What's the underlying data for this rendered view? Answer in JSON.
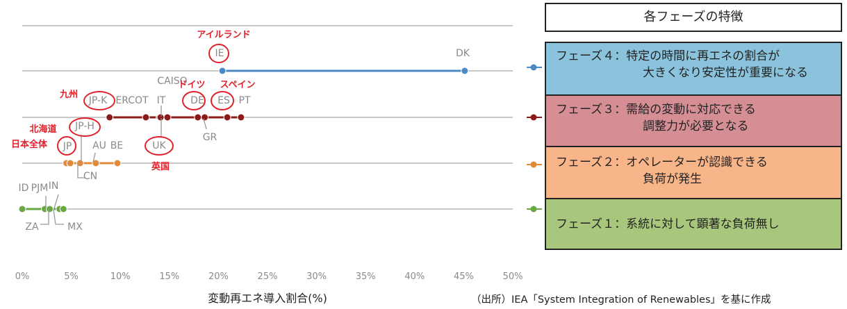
{
  "chart_data": {
    "type": "scatter",
    "xlabel": "変動再エネ導入割合(%)",
    "xlim": [
      0,
      50
    ],
    "x_ticks": [
      "0%",
      "5%",
      "10%",
      "15%",
      "20%",
      "25%",
      "30%",
      "35%",
      "40%",
      "45%",
      "50%"
    ],
    "grid": true,
    "series": [
      {
        "phase": "フェーズ1",
        "color": "#6aa843",
        "points": [
          {
            "label": "ID",
            "x": 0.0
          },
          {
            "label": "PJM",
            "x": 2.3
          },
          {
            "label": "ZA",
            "x": 2.8
          },
          {
            "label": "IN",
            "x": 3.8
          },
          {
            "label": "MX",
            "x": 4.2
          }
        ]
      },
      {
        "phase": "フェーズ2",
        "color": "#e08a3a",
        "points": [
          {
            "label": "JP",
            "x": 4.5
          },
          {
            "label": "CN",
            "x": 5.9
          },
          {
            "label": "JP-H",
            "x": 4.9
          },
          {
            "label": "AU",
            "x": 7.5
          },
          {
            "label": "BE",
            "x": 9.7
          }
        ]
      },
      {
        "phase": "フェーズ3",
        "color": "#8b1a1a",
        "points": [
          {
            "label": "JP-K",
            "x": 8.9
          },
          {
            "label": "ERCOT",
            "x": 12.6
          },
          {
            "label": "IT",
            "x": 14.0
          },
          {
            "label": "UK",
            "x": 14.1
          },
          {
            "label": "CAISO",
            "x": 14.8
          },
          {
            "label": "DE",
            "x": 17.9
          },
          {
            "label": "GR",
            "x": 18.6
          },
          {
            "label": "ES",
            "x": 20.9
          },
          {
            "label": "PT",
            "x": 22.3
          }
        ]
      },
      {
        "phase": "フェーズ4",
        "color": "#4d8ac4",
        "points": [
          {
            "label": "IE",
            "x": 20.4
          },
          {
            "label": "DK",
            "x": 45.1
          }
        ]
      }
    ],
    "annotations": {
      "IE": "アイルランド",
      "JP-K": "九州",
      "DE": "ドイツ",
      "ES": "スペイン",
      "JP-H": "北海道",
      "JP": "日本全体",
      "UK": "英国"
    }
  },
  "legend": {
    "title": "各フェーズの特徴",
    "phases": [
      {
        "name": "フェーズ４",
        "desc1": "特定の時間に再エネの割合が",
        "desc2": "大きくなり安定性が重要になる",
        "color": "#8cc3dc"
      },
      {
        "name": "フェーズ３",
        "desc1": "需給の変動に対応できる",
        "desc2": "調整力が必要となる",
        "color": "#d68e95"
      },
      {
        "name": "フェーズ２",
        "desc1": "オペレーターが認識できる",
        "desc2": "負荷が発生",
        "color": "#f8b58a"
      },
      {
        "name": "フェーズ１",
        "desc1": "系統に対して顕著な負荷無し",
        "color": "#a9c77c"
      }
    ],
    "separator": "：",
    "source": "（出所）IEA「System Integration of Renewables」を基に作成"
  }
}
